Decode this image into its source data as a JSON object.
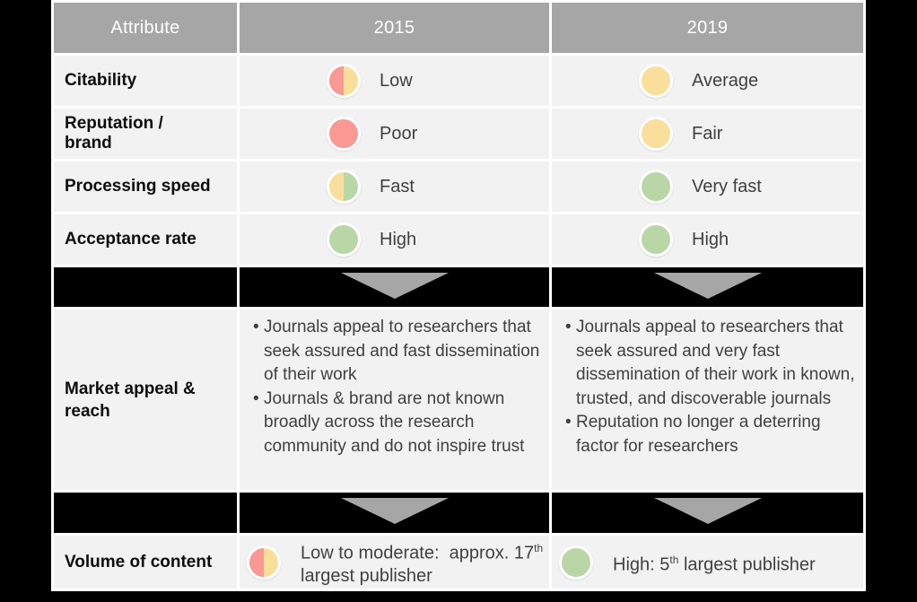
{
  "colors": {
    "red": "#FA9894",
    "yellow": "#FADE9C",
    "green": "#B9D7A6",
    "header_gray": "#A6A6A6",
    "row_bg": "#F2F2F2",
    "arrow_gray": "#A6A6A6",
    "background": "#000000"
  },
  "header": {
    "attribute": "Attribute",
    "col2015": "2015",
    "col2019": "2019"
  },
  "attribute_rows": [
    {
      "label": "Citability",
      "v2015": {
        "text": "Low",
        "dot": [
          "red",
          "yellow"
        ]
      },
      "v2019": {
        "text": "Average",
        "dot": [
          "yellow"
        ]
      }
    },
    {
      "label": "Reputation / brand",
      "v2015": {
        "text": "Poor",
        "dot": [
          "red"
        ]
      },
      "v2019": {
        "text": "Fair",
        "dot": [
          "yellow"
        ]
      }
    },
    {
      "label": "Processing speed",
      "v2015": {
        "text": "Fast",
        "dot": [
          "yellow",
          "green"
        ]
      },
      "v2019": {
        "text": "Very fast",
        "dot": [
          "green"
        ]
      }
    },
    {
      "label": "Acceptance rate",
      "v2015": {
        "text": "High",
        "dot": [
          "green"
        ]
      },
      "v2019": {
        "text": "High",
        "dot": [
          "green"
        ]
      }
    }
  ],
  "market": {
    "label": "Market appeal & reach",
    "bullets_2015": [
      "Journals appeal to researchers that seek assured and fast dissemination of their work",
      "Journals & brand are not known broadly across the research community and do not inspire trust"
    ],
    "bullets_2019": [
      "Journals appeal to researchers that seek assured and very fast dissemination of their work in known, trusted, and discoverable journals",
      "Reputation no longer a deterring factor for researchers"
    ]
  },
  "volume": {
    "label": "Volume of content",
    "v2015": {
      "pre": "Low to moderate:  approx. 17",
      "sup": "th",
      "post": " largest publisher",
      "dot": [
        "red",
        "yellow"
      ]
    },
    "v2019": {
      "pre": "High: 5",
      "sup": "th",
      "post": " largest publisher",
      "dot": [
        "green"
      ]
    }
  }
}
